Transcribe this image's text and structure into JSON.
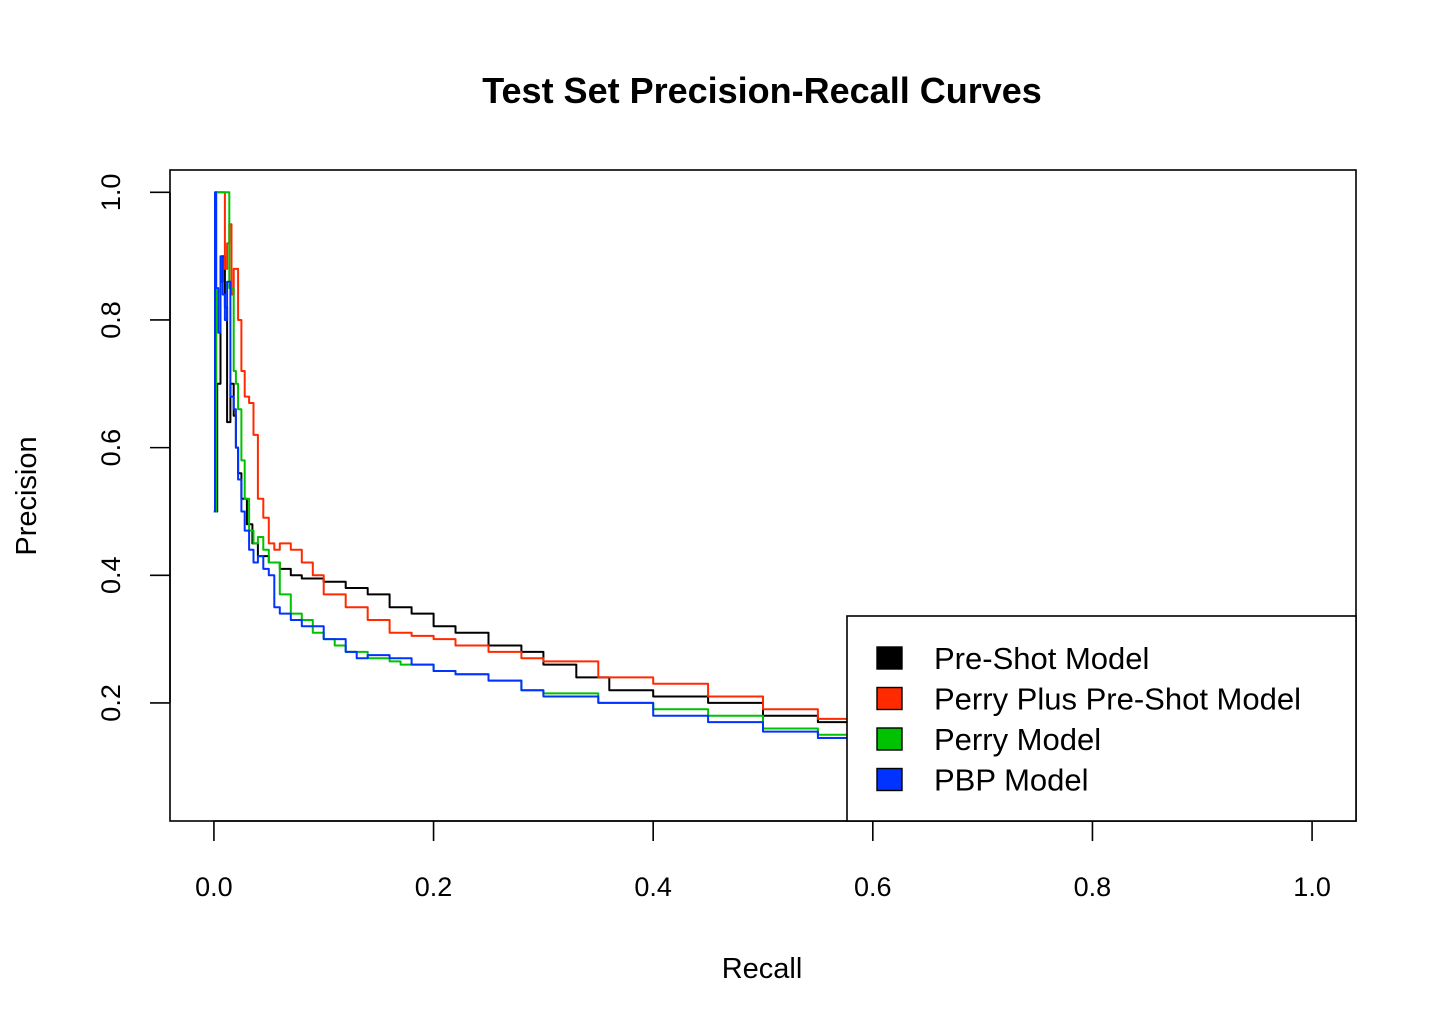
{
  "chart_data": {
    "type": "line",
    "title": "Test Set Precision-Recall Curves",
    "xlabel": "Recall",
    "ylabel": "Precision",
    "xlim": [
      -0.04,
      1.04
    ],
    "ylim": [
      0.015,
      1.035
    ],
    "xticks": [
      0.0,
      0.2,
      0.4,
      0.6,
      0.8,
      1.0
    ],
    "xtick_labels": [
      "0.0",
      "0.2",
      "0.4",
      "0.6",
      "0.8",
      "1.0"
    ],
    "yticks": [
      0.2,
      0.4,
      0.6,
      0.8,
      1.0
    ],
    "ytick_labels": [
      "0.2",
      "0.4",
      "0.6",
      "0.8",
      "1.0"
    ],
    "grid": false,
    "legend_position": "bottom-right",
    "series": [
      {
        "name": "Pre-Shot Model",
        "color": "#000000",
        "x": [
          0.0,
          0.003,
          0.006,
          0.008,
          0.01,
          0.012,
          0.015,
          0.018,
          0.02,
          0.022,
          0.025,
          0.03,
          0.035,
          0.04,
          0.05,
          0.06,
          0.07,
          0.08,
          0.1,
          0.12,
          0.14,
          0.16,
          0.18,
          0.2,
          0.22,
          0.25,
          0.28,
          0.3,
          0.33,
          0.36,
          0.4,
          0.45,
          0.5,
          0.55,
          0.58
        ],
        "y": [
          0.5,
          0.7,
          0.86,
          0.9,
          0.82,
          0.64,
          0.7,
          0.65,
          0.6,
          0.56,
          0.52,
          0.48,
          0.45,
          0.43,
          0.42,
          0.41,
          0.4,
          0.395,
          0.39,
          0.38,
          0.37,
          0.35,
          0.34,
          0.32,
          0.31,
          0.29,
          0.28,
          0.26,
          0.24,
          0.22,
          0.21,
          0.2,
          0.18,
          0.17,
          0.165
        ]
      },
      {
        "name": "Perry Plus Pre-Shot Model",
        "color": "#ff2a00",
        "x": [
          0.0,
          0.002,
          0.004,
          0.008,
          0.01,
          0.012,
          0.014,
          0.016,
          0.018,
          0.02,
          0.022,
          0.025,
          0.028,
          0.032,
          0.036,
          0.04,
          0.045,
          0.05,
          0.055,
          0.06,
          0.065,
          0.07,
          0.08,
          0.09,
          0.1,
          0.12,
          0.14,
          0.16,
          0.18,
          0.2,
          0.22,
          0.25,
          0.28,
          0.3,
          0.35,
          0.4,
          0.45,
          0.5,
          0.55,
          0.58
        ],
        "y": [
          0.5,
          1.0,
          1.0,
          1.0,
          0.88,
          0.92,
          0.95,
          0.84,
          0.88,
          0.88,
          0.8,
          0.72,
          0.68,
          0.67,
          0.62,
          0.52,
          0.49,
          0.45,
          0.44,
          0.45,
          0.45,
          0.44,
          0.42,
          0.4,
          0.37,
          0.35,
          0.33,
          0.31,
          0.305,
          0.3,
          0.29,
          0.28,
          0.27,
          0.265,
          0.24,
          0.23,
          0.21,
          0.19,
          0.175,
          0.165
        ]
      },
      {
        "name": "Perry Model",
        "color": "#00c200",
        "x": [
          0.0,
          0.002,
          0.006,
          0.01,
          0.014,
          0.018,
          0.02,
          0.022,
          0.025,
          0.028,
          0.032,
          0.036,
          0.04,
          0.045,
          0.05,
          0.06,
          0.07,
          0.08,
          0.09,
          0.1,
          0.11,
          0.12,
          0.14,
          0.16,
          0.17,
          0.18,
          0.2,
          0.22,
          0.25,
          0.28,
          0.3,
          0.35,
          0.4,
          0.45,
          0.5,
          0.55,
          0.58
        ],
        "y": [
          0.5,
          1.0,
          1.0,
          1.0,
          0.85,
          0.72,
          0.7,
          0.66,
          0.58,
          0.52,
          0.47,
          0.45,
          0.46,
          0.44,
          0.42,
          0.37,
          0.34,
          0.33,
          0.31,
          0.3,
          0.29,
          0.28,
          0.27,
          0.265,
          0.26,
          0.26,
          0.25,
          0.245,
          0.235,
          0.22,
          0.215,
          0.2,
          0.19,
          0.18,
          0.16,
          0.15,
          0.14
        ]
      },
      {
        "name": "PBP Model",
        "color": "#0033ff",
        "x": [
          0.0,
          0.001,
          0.002,
          0.004,
          0.006,
          0.008,
          0.01,
          0.012,
          0.015,
          0.018,
          0.02,
          0.022,
          0.025,
          0.028,
          0.032,
          0.036,
          0.04,
          0.045,
          0.05,
          0.055,
          0.06,
          0.07,
          0.08,
          0.1,
          0.12,
          0.13,
          0.14,
          0.16,
          0.18,
          0.2,
          0.22,
          0.25,
          0.28,
          0.3,
          0.35,
          0.4,
          0.45,
          0.5,
          0.55,
          0.58
        ],
        "y": [
          0.5,
          1.0,
          0.85,
          0.78,
          0.9,
          0.84,
          0.8,
          0.86,
          0.68,
          0.66,
          0.6,
          0.55,
          0.5,
          0.47,
          0.44,
          0.42,
          0.43,
          0.41,
          0.4,
          0.35,
          0.34,
          0.33,
          0.32,
          0.3,
          0.28,
          0.27,
          0.275,
          0.27,
          0.26,
          0.25,
          0.245,
          0.235,
          0.22,
          0.21,
          0.2,
          0.18,
          0.17,
          0.155,
          0.145,
          0.135
        ]
      }
    ]
  }
}
